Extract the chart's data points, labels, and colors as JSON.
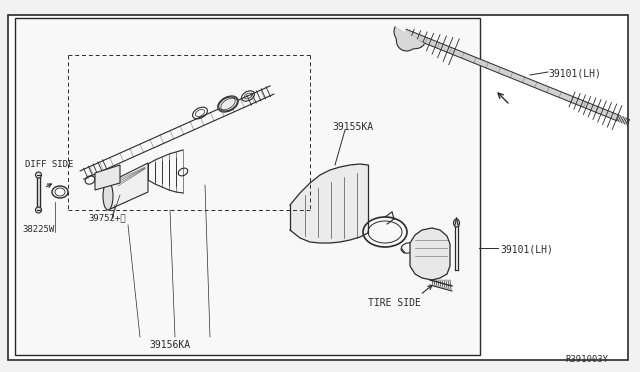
{
  "bg_color": "#f2f2f2",
  "box_fill": "#ffffff",
  "lc": "#2a2a2a",
  "tc": "#2a2a2a",
  "labels": {
    "39101LH_top": "39101(LH)",
    "39101LH_bot": "39101(LH)",
    "39155KA": "39155KA",
    "39156KA": "39156KA",
    "39752": "39752+Ⅱ",
    "38225W": "38225W",
    "DIFF_SIDE": "DIFF SIDE",
    "TIRE_SIDE": "TIRE SIDE",
    "ref": "R391003Y"
  }
}
